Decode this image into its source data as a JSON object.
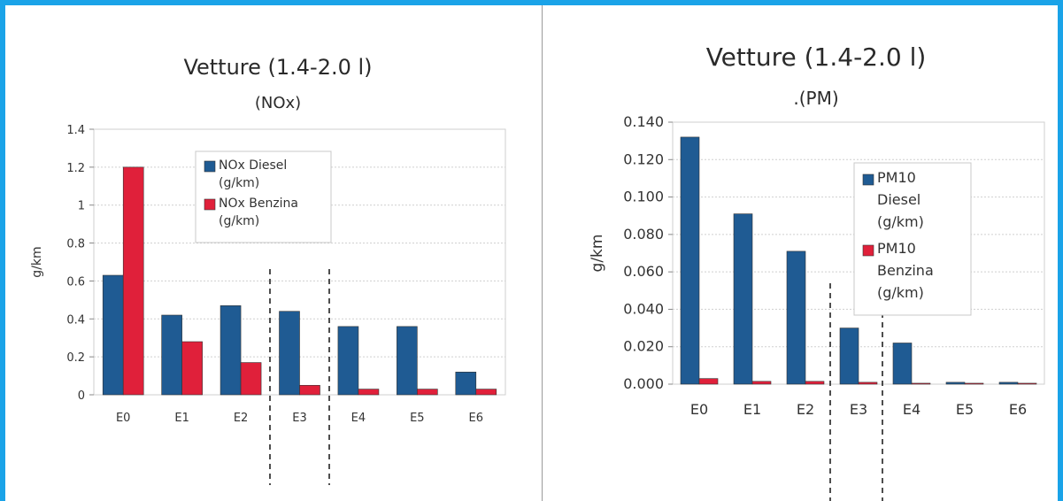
{
  "colors": {
    "diesel": "#1f5b93",
    "benzina": "#e0203a",
    "frame": "#1aa3e8",
    "grid": "#cfcfcf"
  },
  "chart_data": [
    {
      "type": "bar",
      "title": "Vetture (1.4-2.0 l)",
      "subtitle": "(NOx)",
      "ylabel": "g/km",
      "xlabel": "",
      "categories": [
        "E0",
        "E1",
        "E2",
        "E3",
        "E4",
        "E5",
        "E6"
      ],
      "ylim": [
        0,
        1.4
      ],
      "yticks": [
        "0",
        "0.2",
        "0.4",
        "0.6",
        "0.8",
        "1",
        "1.2",
        "1.4"
      ],
      "ytick_values": [
        0,
        0.2,
        0.4,
        0.6,
        0.8,
        1.0,
        1.2,
        1.4
      ],
      "grid": true,
      "legend_position": "top-right",
      "series": [
        {
          "name": "NOx Diesel",
          "name_unit": "(g/km)",
          "values": [
            0.63,
            0.42,
            0.47,
            0.44,
            0.36,
            0.36,
            0.12
          ]
        },
        {
          "name": "NOx Benzina",
          "name_unit": "(g/km)",
          "values": [
            1.2,
            0.28,
            0.17,
            0.05,
            0.03,
            0.03,
            0.03
          ]
        }
      ]
    },
    {
      "type": "bar",
      "title": "Vetture (1.4-2.0 l)",
      "subtitle": ".(PM)",
      "ylabel": "g/km",
      "xlabel": "",
      "categories": [
        "E0",
        "E1",
        "E2",
        "E3",
        "E4",
        "E5",
        "E6"
      ],
      "ylim": [
        0,
        0.14
      ],
      "yticks": [
        "0.000",
        "0.020",
        "0.040",
        "0.060",
        "0.080",
        "0.100",
        "0.120",
        "0.140"
      ],
      "ytick_values": [
        0,
        0.02,
        0.04,
        0.06,
        0.08,
        0.1,
        0.12,
        0.14
      ],
      "grid": true,
      "legend_position": "top-right",
      "series": [
        {
          "name": "PM10",
          "name_line2": "Diesel",
          "name_unit": "(g/km)",
          "values": [
            0.132,
            0.091,
            0.071,
            0.03,
            0.022,
            0.001,
            0.001
          ]
        },
        {
          "name": "PM10",
          "name_line2": "Benzina",
          "name_unit": "(g/km)",
          "values": [
            0.003,
            0.0015,
            0.0015,
            0.001,
            0.0005,
            0.0005,
            0.0005
          ]
        }
      ]
    }
  ]
}
